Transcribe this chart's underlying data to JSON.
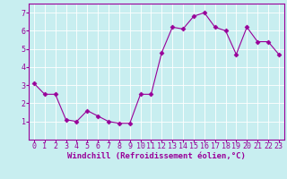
{
  "x": [
    0,
    1,
    2,
    3,
    4,
    5,
    6,
    7,
    8,
    9,
    10,
    11,
    12,
    13,
    14,
    15,
    16,
    17,
    18,
    19,
    20,
    21,
    22,
    23
  ],
  "y": [
    3.1,
    2.5,
    2.5,
    1.1,
    1.0,
    1.6,
    1.3,
    1.0,
    0.9,
    0.9,
    2.5,
    2.5,
    4.8,
    6.2,
    6.1,
    6.8,
    7.0,
    6.2,
    6.0,
    4.7,
    6.2,
    5.4,
    5.4,
    4.7
  ],
  "line_color": "#990099",
  "marker": "D",
  "marker_size": 2.5,
  "bg_color": "#c8eef0",
  "grid_color": "#ffffff",
  "xlabel": "Windchill (Refroidissement éolien,°C)",
  "xlim": [
    -0.5,
    23.5
  ],
  "ylim": [
    0,
    7.5
  ],
  "yticks": [
    1,
    2,
    3,
    4,
    5,
    6,
    7
  ],
  "xticks": [
    0,
    1,
    2,
    3,
    4,
    5,
    6,
    7,
    8,
    9,
    10,
    11,
    12,
    13,
    14,
    15,
    16,
    17,
    18,
    19,
    20,
    21,
    22,
    23
  ],
  "xlabel_fontsize": 6.5,
  "tick_fontsize": 6,
  "label_color": "#990099",
  "spine_color": "#990099",
  "linewidth": 0.8
}
